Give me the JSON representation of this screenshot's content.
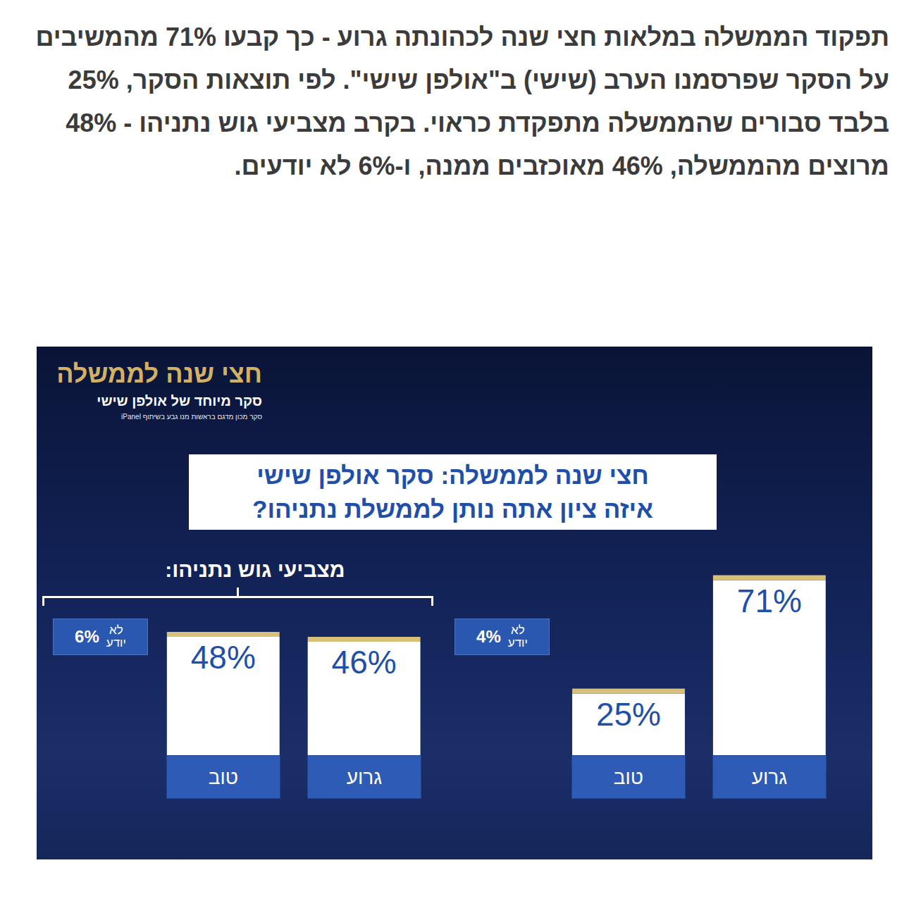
{
  "article_text": "תפקוד הממשלה במלאות חצי שנה לכהונתה גרוע - כך קבעו 71% מהמשיבים על הסקר שפרסמנו הערב (שישי) ב\"אולפן שישי\". לפי תוצאות הסקר, 25% בלבד סבורים שהממשלה מתפקדת כראוי. בקרב מצביעי גוש נתניהו - 48% מרוצים מהממשלה, 46% מאוכזבים ממנה, ו-6% לא יודעים.",
  "header": {
    "title": "חצי שנה לממשלה",
    "subtitle": "סקר מיוחד של אולפן שישי",
    "credit": "סקר מכון מדגם בראשות מנו גבע בשיתוף iPanel"
  },
  "title_lines": [
    "חצי שנה לממשלה: סקר אולפן שישי",
    "איזה ציון אתה נותן לממשלת נתניהו?"
  ],
  "chart_data": [
    {
      "type": "bar",
      "title": "מצביעי גוש נתניהו:",
      "categories": [
        "גרוע",
        "טוב"
      ],
      "values": [
        46,
        48
      ],
      "value_labels": [
        "46%",
        "48%"
      ],
      "dont_know": {
        "label": "לא יודע",
        "value": 6,
        "value_label": "6%"
      },
      "color": "#ffffff",
      "ylim": [
        0,
        80
      ],
      "data_labels": true,
      "tick_labels": false
    },
    {
      "type": "bar",
      "categories": [
        "גרוע",
        "טוב"
      ],
      "values": [
        71,
        25
      ],
      "value_labels": [
        "71%",
        "25%"
      ],
      "dont_know": {
        "label": "לא יודע",
        "value": 4,
        "value_label": "4%"
      },
      "color": "#ffffff",
      "ylim": [
        0,
        80
      ],
      "data_labels": true,
      "tick_labels": false
    }
  ]
}
